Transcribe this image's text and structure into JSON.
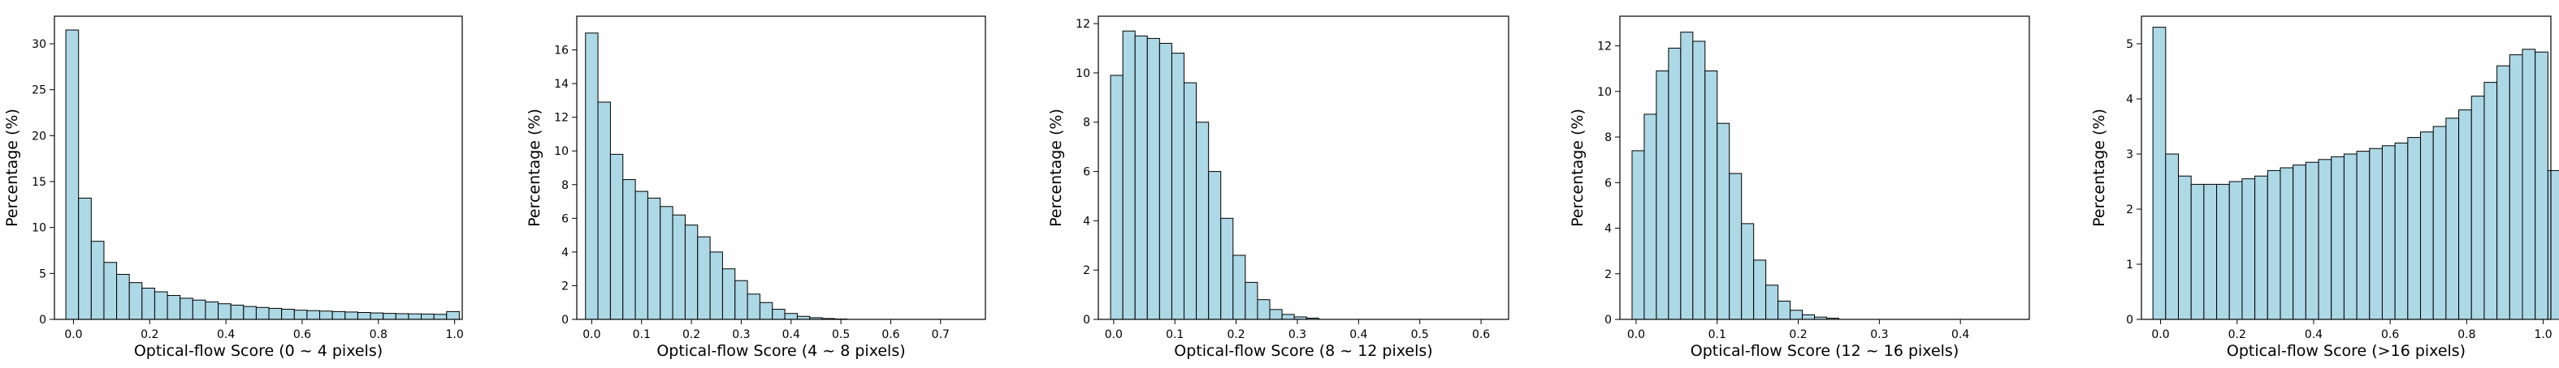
{
  "colors": {
    "bar_fill": "#add8e6",
    "bar_edge": "#000000",
    "axis": "#000000"
  },
  "chart_data": [
    {
      "type": "bar",
      "xlabel": "Optical-flow Score (0 ~ 4 pixels)",
      "ylabel": "Percentage (%)",
      "xlim": [
        -0.05,
        1.02
      ],
      "ylim": [
        0,
        33
      ],
      "xticks": [
        0.0,
        0.2,
        0.4,
        0.6,
        0.8,
        1.0
      ],
      "yticks": [
        0,
        5,
        10,
        15,
        20,
        25,
        30
      ],
      "bin_start": -0.02,
      "bin_width": 0.0333,
      "values": [
        31.5,
        13.2,
        8.5,
        6.2,
        4.9,
        4.0,
        3.4,
        3.0,
        2.6,
        2.3,
        2.1,
        1.9,
        1.7,
        1.55,
        1.4,
        1.3,
        1.2,
        1.1,
        1.0,
        0.95,
        0.9,
        0.85,
        0.8,
        0.75,
        0.7,
        0.65,
        0.62,
        0.6,
        0.58,
        0.55,
        0.85
      ],
      "grid": false
    },
    {
      "type": "bar",
      "xlabel": "Optical-flow Score (4 ~ 8 pixels)",
      "ylabel": "Percentage (%)",
      "xlim": [
        -0.03,
        0.79
      ],
      "ylim": [
        0,
        18
      ],
      "xticks": [
        0.0,
        0.1,
        0.2,
        0.3,
        0.4,
        0.5,
        0.6,
        0.7
      ],
      "yticks": [
        0,
        2,
        4,
        6,
        8,
        10,
        12,
        14,
        16
      ],
      "bin_start": -0.0125,
      "bin_width": 0.025,
      "values": [
        17.0,
        12.9,
        9.8,
        8.3,
        7.6,
        7.2,
        6.7,
        6.2,
        5.6,
        4.9,
        4.0,
        3.0,
        2.3,
        1.5,
        1.0,
        0.6,
        0.35,
        0.18,
        0.1,
        0.05,
        0.02
      ],
      "grid": false
    },
    {
      "type": "bar",
      "xlabel": "Optical-flow Score (8 ~ 12 pixels)",
      "ylabel": "Percentage (%)",
      "xlim": [
        -0.025,
        0.645
      ],
      "ylim": [
        0,
        12.3
      ],
      "xticks": [
        0.0,
        0.1,
        0.2,
        0.3,
        0.4,
        0.5,
        0.6
      ],
      "yticks": [
        0,
        2,
        4,
        6,
        8,
        10,
        12
      ],
      "bin_start": -0.005,
      "bin_width": 0.02,
      "values": [
        9.9,
        11.7,
        11.5,
        11.4,
        11.2,
        10.8,
        9.6,
        8.0,
        6.0,
        4.1,
        2.6,
        1.5,
        0.8,
        0.4,
        0.2,
        0.1,
        0.05
      ],
      "grid": false
    },
    {
      "type": "bar",
      "xlabel": "Optical-flow Score (12 ~ 16 pixels)",
      "ylabel": "Percentage (%)",
      "xlim": [
        -0.02,
        0.485
      ],
      "ylim": [
        0,
        13.3
      ],
      "xticks": [
        0.0,
        0.1,
        0.2,
        0.3,
        0.4
      ],
      "yticks": [
        0,
        2,
        4,
        6,
        8,
        10,
        12
      ],
      "bin_start": -0.005,
      "bin_width": 0.015,
      "values": [
        7.4,
        9.0,
        10.9,
        11.9,
        12.6,
        12.2,
        10.9,
        8.6,
        6.4,
        4.2,
        2.6,
        1.5,
        0.8,
        0.4,
        0.2,
        0.1,
        0.05
      ],
      "grid": false
    },
    {
      "type": "bar",
      "xlabel": "Optical-flow Score (>16 pixels)",
      "ylabel": "Percentage (%)",
      "xlim": [
        -0.05,
        1.02
      ],
      "ylim": [
        0,
        5.5
      ],
      "xticks": [
        0.0,
        0.2,
        0.4,
        0.6,
        0.8,
        1.0
      ],
      "yticks": [
        0,
        1,
        2,
        3,
        4,
        5
      ],
      "bin_start": -0.02,
      "bin_width": 0.0333,
      "values": [
        5.3,
        3.0,
        2.6,
        2.45,
        2.45,
        2.45,
        2.5,
        2.55,
        2.6,
        2.7,
        2.75,
        2.8,
        2.85,
        2.9,
        2.95,
        3.0,
        3.05,
        3.1,
        3.15,
        3.2,
        3.3,
        3.4,
        3.5,
        3.65,
        3.8,
        4.05,
        4.3,
        4.6,
        4.8,
        4.9,
        4.85,
        2.7
      ],
      "grid": false
    }
  ]
}
